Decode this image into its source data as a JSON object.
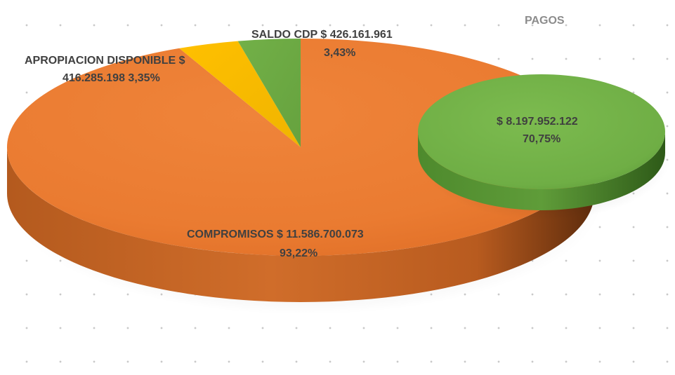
{
  "chart_data": {
    "type": "pie",
    "charts": [
      {
        "title": "",
        "slices": [
          {
            "name": "COMPROMISOS",
            "value": 11586700073,
            "value_label": "$ 11.586.700.073",
            "percent_label": "93,22%",
            "color": "#ED7D31"
          },
          {
            "name": "APROPIACION DISPONIBLE",
            "value": 416285198,
            "value_label": "$ 416.285.198",
            "percent_label": "3,35%",
            "color": "#FFC000"
          },
          {
            "name": "SALDO CDP",
            "value": 426161961,
            "value_label": "$ 426.161.961",
            "percent_label": "3,43%",
            "color": "#70AD47"
          }
        ]
      },
      {
        "title": "PAGOS",
        "slices": [
          {
            "name": "PAGOS",
            "value": 8197952122,
            "value_label": "$ 8.197.952.122",
            "percent_label": "70,75%",
            "color": "#70AD47"
          }
        ]
      }
    ],
    "style": "3d-pie",
    "background_grid": "dotted"
  },
  "labels": {
    "compromisos_line1": "COMPROMISOS  $ 11.586.700.073",
    "compromisos_line2": "93,22%",
    "apropiacion_line1": "APROPIACION DISPONIBLE  $",
    "apropiacion_line2": "416.285.198  3,35%",
    "saldo_line1": "SALDO CDP   $ 426.161.961",
    "saldo_line2": "3,43%",
    "pagos_title": "PAGOS",
    "pagos_line1": "$ 8.197.952.122",
    "pagos_line2": "70,75%"
  }
}
